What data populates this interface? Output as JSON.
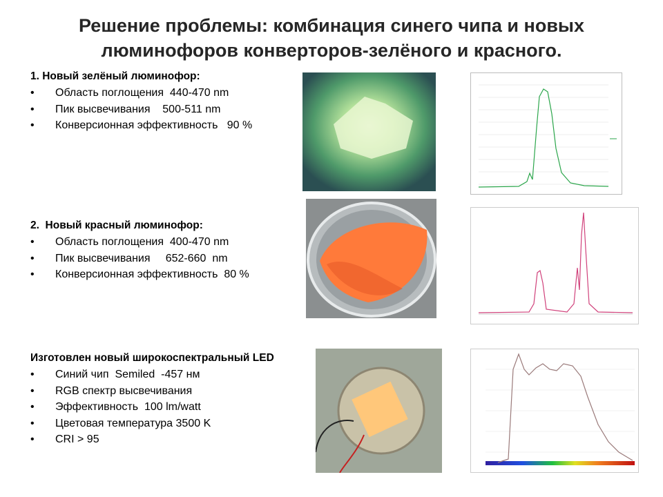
{
  "header": {
    "title": [
      "Решение проблемы: комбинация синего чипа и новых",
      "люминофоров конверторов-зелёного и красного."
    ]
  },
  "sections": [
    {
      "heading": "1. Новый зелёный люминофор:",
      "items": [
        "Область поглощения  440-470 nm",
        "Пик высвечивания    500-511 nm",
        "Конверсионная эффективность   90 %"
      ]
    },
    {
      "heading": "2.  Новый красный люминофор:",
      "items": [
        "Область поглощения  400-470 nm",
        "Пик высвечивания     652-660  nm",
        "Конверсионная эффективность  80 %"
      ]
    },
    {
      "heading": "Изготовлен новый широкоспектральный LED",
      "items": [
        "Синий чип  Semiled  -457 нм",
        "RGB спектр высвечивания",
        "Эффективность  100 lm/watt",
        "Цветовая температура 3500 K",
        "CRI > 95"
      ]
    }
  ]
}
